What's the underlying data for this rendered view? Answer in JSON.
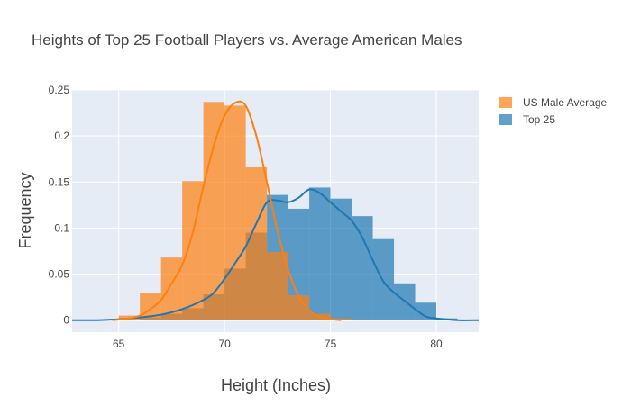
{
  "chart_data": {
    "type": "histogram",
    "title": "Heights of Top 25 Football Players vs. Average American Males",
    "xlabel": "Height (Inches)",
    "ylabel": "Frequency",
    "xlim": [
      62.8,
      82
    ],
    "ylim": [
      -0.013,
      0.25
    ],
    "xticks": [
      {
        "v": 65,
        "label": "65"
      },
      {
        "v": 70,
        "label": "70"
      },
      {
        "v": 75,
        "label": "75"
      },
      {
        "v": 80,
        "label": "80"
      }
    ],
    "yticks": [
      {
        "v": 0,
        "label": "0"
      },
      {
        "v": 0.05,
        "label": "0.05"
      },
      {
        "v": 0.1,
        "label": "0.1"
      },
      {
        "v": 0.15,
        "label": "0.15"
      },
      {
        "v": 0.2,
        "label": "0.2"
      },
      {
        "v": 0.25,
        "label": "0.25"
      }
    ],
    "grid": true,
    "legend_position": "top-right",
    "bin_width": 1,
    "series": [
      {
        "name": "Top 25",
        "color": "#1f77b4",
        "bins": [
          {
            "start": 66,
            "value": 0.003
          },
          {
            "start": 67,
            "value": 0.007
          },
          {
            "start": 68,
            "value": 0.013
          },
          {
            "start": 69,
            "value": 0.028
          },
          {
            "start": 70,
            "value": 0.056
          },
          {
            "start": 71,
            "value": 0.095
          },
          {
            "start": 72,
            "value": 0.136
          },
          {
            "start": 73,
            "value": 0.121
          },
          {
            "start": 74,
            "value": 0.144
          },
          {
            "start": 75,
            "value": 0.132
          },
          {
            "start": 76,
            "value": 0.113
          },
          {
            "start": 77,
            "value": 0.088
          },
          {
            "start": 78,
            "value": 0.04
          },
          {
            "start": 79,
            "value": 0.019
          },
          {
            "start": 80,
            "value": 0.002
          }
        ],
        "curve": [
          [
            62.8,
            0.0
          ],
          [
            64,
            0.0
          ],
          [
            65,
            0.001
          ],
          [
            66,
            0.003
          ],
          [
            67,
            0.006
          ],
          [
            68,
            0.012
          ],
          [
            69,
            0.022
          ],
          [
            69.5,
            0.03
          ],
          [
            70,
            0.045
          ],
          [
            70.5,
            0.062
          ],
          [
            71,
            0.08
          ],
          [
            71.5,
            0.105
          ],
          [
            72,
            0.128
          ],
          [
            72.5,
            0.13
          ],
          [
            73,
            0.128
          ],
          [
            73.5,
            0.133
          ],
          [
            74,
            0.142
          ],
          [
            74.5,
            0.138
          ],
          [
            75,
            0.128
          ],
          [
            75.5,
            0.118
          ],
          [
            76,
            0.108
          ],
          [
            76.5,
            0.09
          ],
          [
            77,
            0.065
          ],
          [
            77.5,
            0.042
          ],
          [
            78,
            0.03
          ],
          [
            78.5,
            0.021
          ],
          [
            79,
            0.012
          ],
          [
            79.5,
            0.004
          ],
          [
            80,
            0.002
          ],
          [
            81,
            0.0
          ],
          [
            82,
            0.0
          ]
        ]
      },
      {
        "name": "US Male Average",
        "color": "#ff7f0e",
        "bins": [
          {
            "start": 64,
            "value": 0.0005
          },
          {
            "start": 65,
            "value": 0.005
          },
          {
            "start": 66,
            "value": 0.029
          },
          {
            "start": 67,
            "value": 0.068
          },
          {
            "start": 68,
            "value": 0.151
          },
          {
            "start": 69,
            "value": 0.237
          },
          {
            "start": 70,
            "value": 0.233
          },
          {
            "start": 71,
            "value": 0.166
          },
          {
            "start": 72,
            "value": 0.074
          },
          {
            "start": 73,
            "value": 0.027
          },
          {
            "start": 74,
            "value": 0.007
          },
          {
            "start": 75,
            "value": 0.002
          }
        ],
        "curve": [
          [
            64.7,
            0.0
          ],
          [
            65.5,
            0.002
          ],
          [
            66,
            0.005
          ],
          [
            66.5,
            0.012
          ],
          [
            67,
            0.022
          ],
          [
            67.5,
            0.04
          ],
          [
            68,
            0.06
          ],
          [
            68.5,
            0.095
          ],
          [
            69,
            0.145
          ],
          [
            69.5,
            0.19
          ],
          [
            70,
            0.222
          ],
          [
            70.5,
            0.236
          ],
          [
            71,
            0.233
          ],
          [
            71.5,
            0.2
          ],
          [
            72,
            0.15
          ],
          [
            72.5,
            0.097
          ],
          [
            73,
            0.055
          ],
          [
            73.5,
            0.026
          ],
          [
            74,
            0.01
          ],
          [
            74.5,
            0.004
          ],
          [
            75,
            0.001
          ],
          [
            75.5,
            0.0
          ]
        ]
      }
    ],
    "legend_order": [
      "US Male Average",
      "Top 25"
    ]
  }
}
